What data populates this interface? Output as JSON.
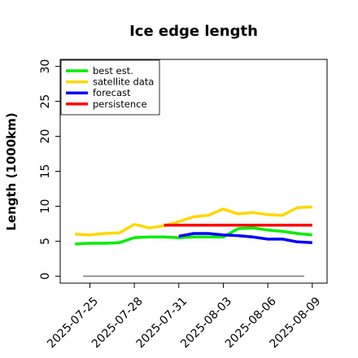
{
  "chart_data": {
    "type": "line",
    "title": "Ice edge length",
    "xlabel": "",
    "ylabel": "Length (1000km)",
    "ylim": [
      -1,
      31
    ],
    "xlim": [
      "2025-07-23",
      "2025-08-10"
    ],
    "yticks": [
      0,
      5,
      10,
      15,
      20,
      25,
      30
    ],
    "xticks": [
      "2025-07-25",
      "2025-07-28",
      "2025-07-31",
      "2025-08-03",
      "2025-08-06",
      "2025-08-09"
    ],
    "highlighted_xtick": "2025-07-31",
    "highlight_color": "#228b22",
    "grid": false,
    "legend_position": "top-left",
    "reference_line": {
      "y": 0,
      "color": "#808080"
    },
    "series": [
      {
        "name": "best est.",
        "color": "#00ee00",
        "x": [
          "2025-07-24",
          "2025-07-25",
          "2025-07-26",
          "2025-07-27",
          "2025-07-28",
          "2025-07-29",
          "2025-07-30",
          "2025-07-31",
          "2025-08-01",
          "2025-08-02",
          "2025-08-03",
          "2025-08-04",
          "2025-08-05",
          "2025-08-06",
          "2025-08-07",
          "2025-08-08",
          "2025-08-09"
        ],
        "values": [
          4.6,
          4.7,
          4.7,
          4.8,
          5.5,
          5.6,
          5.6,
          5.5,
          5.6,
          5.6,
          5.6,
          6.8,
          6.9,
          6.6,
          6.4,
          6.1,
          5.9
        ]
      },
      {
        "name": "satellite data",
        "color": "#ffd700",
        "x": [
          "2025-07-24",
          "2025-07-25",
          "2025-07-26",
          "2025-07-27",
          "2025-07-28",
          "2025-07-29",
          "2025-07-30",
          "2025-07-31",
          "2025-08-01",
          "2025-08-02",
          "2025-08-03",
          "2025-08-04",
          "2025-08-05",
          "2025-08-06",
          "2025-08-07",
          "2025-08-08",
          "2025-08-09"
        ],
        "values": [
          6.0,
          5.9,
          6.1,
          6.2,
          7.4,
          6.9,
          7.2,
          7.8,
          8.5,
          8.7,
          9.6,
          8.9,
          9.1,
          8.8,
          8.7,
          9.8,
          9.9
        ]
      },
      {
        "name": "forecast",
        "color": "#0000ff",
        "x": [
          "2025-07-31",
          "2025-08-01",
          "2025-08-02",
          "2025-08-03",
          "2025-08-04",
          "2025-08-05",
          "2025-08-06",
          "2025-08-07",
          "2025-08-08",
          "2025-08-09"
        ],
        "values": [
          5.7,
          6.1,
          6.1,
          5.9,
          5.8,
          5.6,
          5.3,
          5.3,
          4.9,
          4.8
        ]
      },
      {
        "name": "persistence",
        "color": "#ff0000",
        "x": [
          "2025-07-30",
          "2025-08-09"
        ],
        "values": [
          7.3,
          7.3
        ]
      }
    ]
  }
}
